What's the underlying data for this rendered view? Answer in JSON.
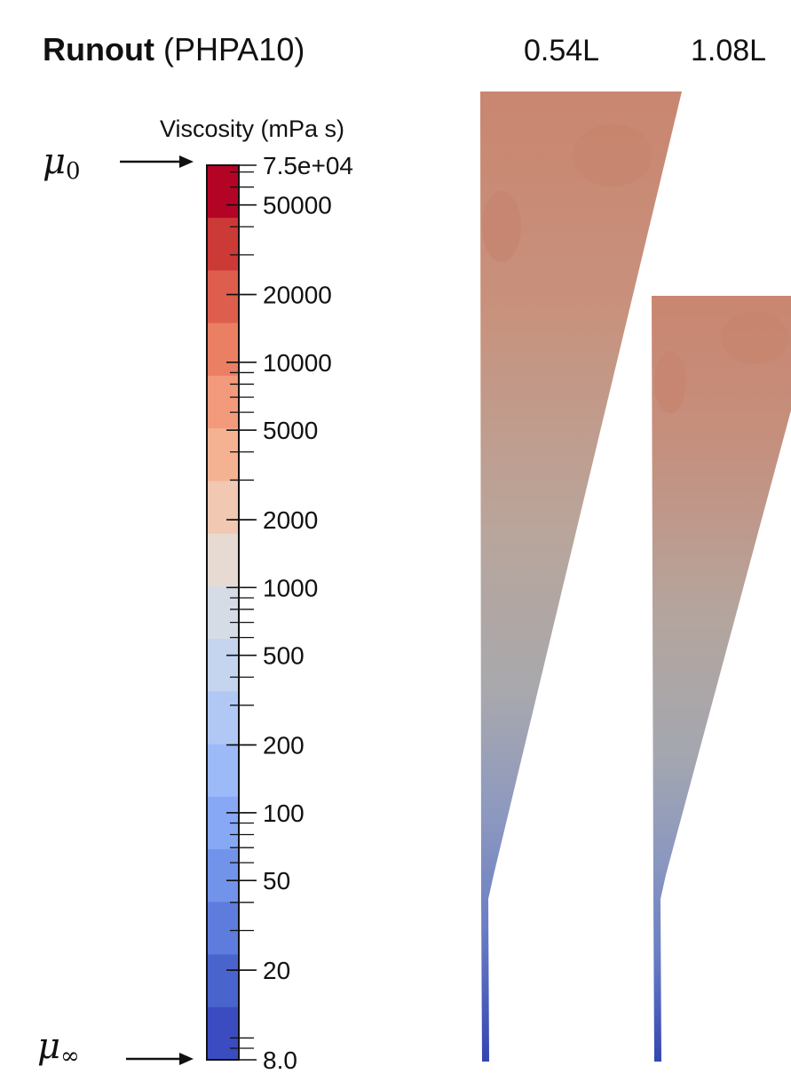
{
  "figure": {
    "title_bold": "Runout",
    "title_rest": " (PHPA10)",
    "columns": [
      "0.54L",
      "1.08L"
    ]
  },
  "colorbar": {
    "title": "Viscosity (mPa s)",
    "scale": "log",
    "min": 8.0,
    "max": 75000,
    "colormap_top": "#b40426",
    "colormap_bottom": "#3b4cc0",
    "tick_labels": [
      {
        "label": "7.5e+04",
        "value": 75000
      },
      {
        "label": "50000",
        "value": 50000
      },
      {
        "label": "20000",
        "value": 20000
      },
      {
        "label": "10000",
        "value": 10000
      },
      {
        "label": "5000",
        "value": 5000
      },
      {
        "label": "2000",
        "value": 2000
      },
      {
        "label": "1000",
        "value": 1000
      },
      {
        "label": "500",
        "value": 500
      },
      {
        "label": "200",
        "value": 200
      },
      {
        "label": "100",
        "value": 100
      },
      {
        "label": "50",
        "value": 50
      },
      {
        "label": "20",
        "value": 20
      },
      {
        "label": "8.0",
        "value": 8.0
      }
    ],
    "band_colors": [
      "#b40426",
      "#cc3a37",
      "#de5e4d",
      "#ea7f64",
      "#f29a7b",
      "#f5b293",
      "#f1c8b2",
      "#e6dad2",
      "#d6dce6",
      "#c5d5ef",
      "#b2c8f4",
      "#9dbaf8",
      "#87a8f4",
      "#7293ea",
      "#5d7cdd",
      "#4a64cd",
      "#3b4cc0"
    ]
  },
  "annotations": {
    "mu0_symbol": "μ",
    "mu0_sub": "0",
    "muinf_symbol": "μ",
    "muinf_sub": "∞"
  },
  "panels": [
    {
      "name": "0.54L",
      "fill_top": "#c98970",
      "fill_mid": "#b0a6a0",
      "fill_bottom": "#3b4fb5"
    },
    {
      "name": "1.08L",
      "fill_top": "#c98970",
      "fill_mid": "#b0a6a0",
      "fill_bottom": "#3b4fb5"
    }
  ]
}
